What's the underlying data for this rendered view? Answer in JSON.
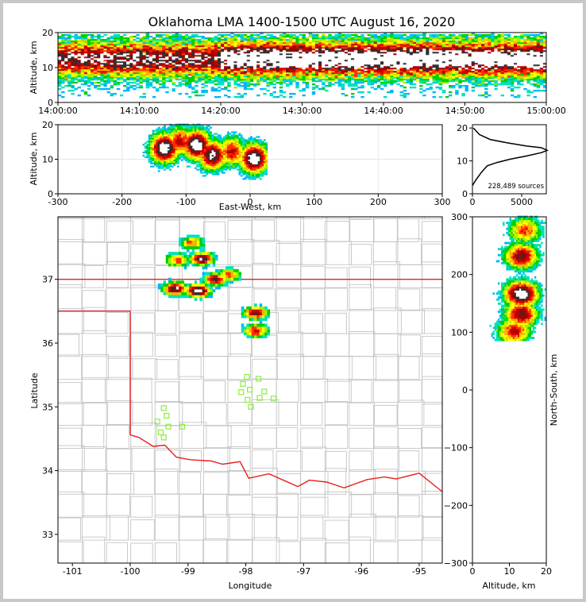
{
  "figure": {
    "title": "Oklahoma LMA 1400-1500 UTC August 16, 2020"
  },
  "chart_data": [
    {
      "type": "heatmap",
      "panel": "time-altitude",
      "ylabel": "Altitude, km",
      "xlim": [
        "14:00:00",
        "15:00:00"
      ],
      "ylim": [
        0,
        20
      ],
      "xticks": [
        "14:00:00",
        "14:10:00",
        "14:20:00",
        "14:30:00",
        "14:40:00",
        "14:50:00",
        "15:00:00"
      ],
      "yticks": [
        0,
        10,
        20
      ],
      "density_core_altitude_km": [
        10,
        15
      ]
    },
    {
      "type": "heatmap",
      "panel": "east-west-altitude",
      "xlabel": "East-West, km",
      "ylabel": "Altitude, km",
      "xlim": [
        -300,
        300
      ],
      "ylim": [
        0,
        20
      ],
      "xticks": [
        -300,
        -200,
        -100,
        0,
        100,
        200,
        300
      ],
      "yticks": [
        0,
        10,
        20
      ],
      "grid": true,
      "cells": [
        {
          "x": -135,
          "y": 13,
          "intensity": 1.0
        },
        {
          "x": -85,
          "y": 14,
          "intensity": 1.0
        },
        {
          "x": -60,
          "y": 11,
          "intensity": 0.9
        },
        {
          "x": 5,
          "y": 10,
          "intensity": 1.0
        },
        {
          "x": -30,
          "y": 12,
          "intensity": 0.7
        },
        {
          "x": -110,
          "y": 15,
          "intensity": 0.7
        }
      ]
    },
    {
      "type": "line",
      "panel": "altitude-histogram",
      "xlim": [
        0,
        7500
      ],
      "ylim": [
        0,
        21
      ],
      "xticks": [
        0,
        5000
      ],
      "yticks": [
        0,
        10,
        20
      ],
      "annotation": "228,489 sources",
      "x": [
        0,
        300,
        900,
        1500,
        2500,
        3800,
        5500,
        7000,
        7600,
        7000,
        5500,
        3500,
        1800,
        700,
        100
      ],
      "y": [
        2.5,
        4,
        6.5,
        8.5,
        9.5,
        10.5,
        11.5,
        12.5,
        13.2,
        14,
        14.5,
        15.5,
        16.5,
        18,
        20
      ]
    },
    {
      "type": "scatter",
      "panel": "plan-view-map",
      "xlabel": "Longitude",
      "ylabel": "Latitude",
      "xlim": [
        -101.25,
        -94.6
      ],
      "ylim": [
        32.55,
        37.98
      ],
      "xticks": [
        -101,
        -100,
        -99,
        -98,
        -97,
        -96,
        -95
      ],
      "yticks": [
        33,
        34,
        35,
        36,
        37
      ],
      "state_border_color": "#e8201e",
      "county_line_color": "#c4c4c4",
      "station_color": "#8aee3e",
      "stations": [
        {
          "lon": -99.42,
          "lat": 34.98
        },
        {
          "lon": -99.37,
          "lat": 34.86
        },
        {
          "lon": -99.53,
          "lat": 34.77
        },
        {
          "lon": -99.34,
          "lat": 34.69
        },
        {
          "lon": -99.47,
          "lat": 34.6
        },
        {
          "lon": -99.42,
          "lat": 34.52
        },
        {
          "lon": -99.1,
          "lat": 34.69
        },
        {
          "lon": -97.98,
          "lat": 35.47
        },
        {
          "lon": -98.05,
          "lat": 35.36
        },
        {
          "lon": -98.08,
          "lat": 35.23
        },
        {
          "lon": -97.93,
          "lat": 35.27
        },
        {
          "lon": -97.78,
          "lat": 35.44
        },
        {
          "lon": -97.68,
          "lat": 35.24
        },
        {
          "lon": -97.76,
          "lat": 35.14
        },
        {
          "lon": -97.52,
          "lat": 35.13
        },
        {
          "lon": -97.97,
          "lat": 35.11
        },
        {
          "lon": -97.91,
          "lat": 35.0
        }
      ],
      "cells": [
        {
          "lon": -98.78,
          "lat": 37.3,
          "intensity": 0.9
        },
        {
          "lon": -98.85,
          "lat": 36.8,
          "intensity": 1.0
        },
        {
          "lon": -99.25,
          "lat": 36.83,
          "intensity": 0.9
        },
        {
          "lon": -98.55,
          "lat": 36.98,
          "intensity": 0.8
        },
        {
          "lon": -99.2,
          "lat": 37.28,
          "intensity": 0.6
        },
        {
          "lon": -98.95,
          "lat": 37.55,
          "intensity": 0.6
        },
        {
          "lon": -97.85,
          "lat": 36.45,
          "intensity": 0.8
        },
        {
          "lon": -97.85,
          "lat": 36.17,
          "intensity": 0.7
        },
        {
          "lon": -98.3,
          "lat": 37.05,
          "intensity": 0.6
        }
      ]
    },
    {
      "type": "heatmap",
      "panel": "altitude-north-south",
      "xlabel": "Altitude, km",
      "ylabel": "North-South, km",
      "xlim": [
        0,
        20
      ],
      "ylim": [
        -300,
        300
      ],
      "xticks": [
        0,
        10,
        20
      ],
      "yticks": [
        -300,
        -200,
        -100,
        0,
        100,
        200,
        300
      ],
      "cells": [
        {
          "x": 13,
          "y": 165,
          "intensity": 1.0
        },
        {
          "x": 13,
          "y": 230,
          "intensity": 0.8
        },
        {
          "x": 13,
          "y": 130,
          "intensity": 0.8
        },
        {
          "x": 11,
          "y": 100,
          "intensity": 0.7
        },
        {
          "x": 14,
          "y": 275,
          "intensity": 0.6
        }
      ]
    }
  ]
}
